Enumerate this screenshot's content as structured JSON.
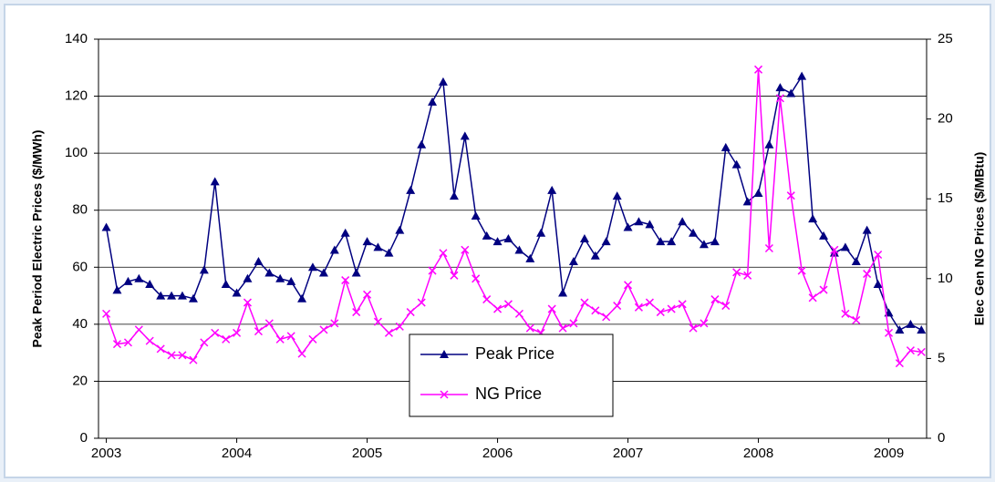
{
  "chart_data": {
    "type": "line",
    "y_label": "Peak Period Electric Prices ($/MWh)",
    "y2_label": "Elec Gen NG Prices ($/MBtu)",
    "x": [
      2003,
      2003.083,
      2003.167,
      2003.25,
      2003.333,
      2003.417,
      2003.5,
      2003.583,
      2003.667,
      2003.75,
      2003.833,
      2003.917,
      2004,
      2004.083,
      2004.167,
      2004.25,
      2004.333,
      2004.417,
      2004.5,
      2004.583,
      2004.667,
      2004.75,
      2004.833,
      2004.917,
      2005,
      2005.083,
      2005.167,
      2005.25,
      2005.333,
      2005.417,
      2005.5,
      2005.583,
      2005.667,
      2005.75,
      2005.833,
      2005.917,
      2006,
      2006.083,
      2006.167,
      2006.25,
      2006.333,
      2006.417,
      2006.5,
      2006.583,
      2006.667,
      2006.75,
      2006.833,
      2006.917,
      2007,
      2007.083,
      2007.167,
      2007.25,
      2007.333,
      2007.417,
      2007.5,
      2007.583,
      2007.667,
      2007.75,
      2007.833,
      2007.917,
      2008,
      2008.083,
      2008.167,
      2008.25,
      2008.333,
      2008.417,
      2008.5,
      2008.583,
      2008.667,
      2008.75,
      2008.833,
      2008.917,
      2009,
      2009.083,
      2009.167,
      2009.25
    ],
    "series": [
      {
        "name": "Peak Price",
        "color": "#000080",
        "marker": "triangle",
        "values": [
          74,
          52,
          55,
          56,
          54,
          50,
          50,
          50,
          49,
          59,
          90,
          54,
          51,
          56,
          62,
          58,
          56,
          55,
          49,
          60,
          58,
          66,
          72,
          58,
          69,
          67,
          65,
          73,
          87,
          103,
          118,
          125,
          85,
          106,
          78,
          71,
          69,
          70,
          66,
          63,
          72,
          87,
          51,
          62,
          70,
          64,
          69,
          85,
          74,
          76,
          75,
          69,
          69,
          76,
          72,
          68,
          69,
          102,
          96,
          83,
          86,
          103,
          123,
          121,
          127,
          77,
          71,
          65,
          67,
          62,
          73,
          54,
          44,
          38,
          40,
          38
        ]
      },
      {
        "name": "NG Price",
        "color": "#ff00ff",
        "marker": "x",
        "axis": "y2",
        "values": [
          7.8,
          5.9,
          6.0,
          6.8,
          6.1,
          5.6,
          5.2,
          5.2,
          4.9,
          6.0,
          6.6,
          6.2,
          6.6,
          8.5,
          6.7,
          7.2,
          6.2,
          6.4,
          5.3,
          6.2,
          6.8,
          7.2,
          9.9,
          7.9,
          9.0,
          7.3,
          6.6,
          7.0,
          7.9,
          8.5,
          10.5,
          11.6,
          10.2,
          11.8,
          10.0,
          8.7,
          8.1,
          8.4,
          7.8,
          6.9,
          6.6,
          8.1,
          6.9,
          7.2,
          8.5,
          8.0,
          7.6,
          8.3,
          9.6,
          8.2,
          8.5,
          7.9,
          8.1,
          8.4,
          6.9,
          7.2,
          8.7,
          8.3,
          10.4,
          10.2,
          23.1,
          11.9,
          21.3,
          15.2,
          10.5,
          8.8,
          9.3,
          11.8,
          7.8,
          7.4,
          10.3,
          11.5,
          6.6,
          4.7,
          5.5,
          5.4
        ]
      }
    ],
    "xlim": [
      2002.94,
      2009.29
    ],
    "xticks": [
      2003,
      2004,
      2005,
      2006,
      2007,
      2008,
      2009
    ],
    "ylim": [
      0,
      140
    ],
    "yticks": [
      0,
      20,
      40,
      60,
      80,
      100,
      120,
      140
    ],
    "y2lim": [
      0,
      25
    ],
    "y2ticks": [
      0,
      5,
      10,
      15,
      20,
      25
    ],
    "grid": true,
    "legend": "bottom-center"
  }
}
